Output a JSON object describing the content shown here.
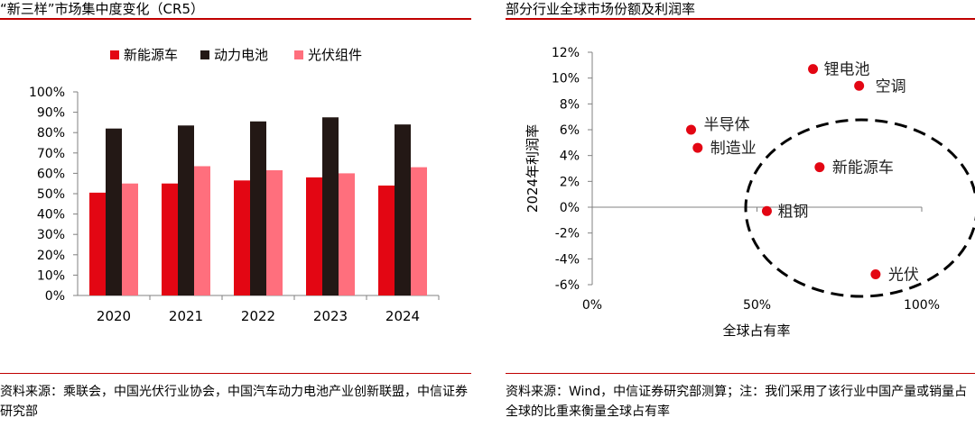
{
  "left_panel": {
    "title": "“新三样”市场集中度变化（CR5）",
    "source": "资料来源：乘联会，中国光伏行业协会，中国汽车动力电池产业创新联盟，中信证券研究部"
  },
  "right_panel": {
    "title": "部分行业全球市场份额及利润率",
    "source": "资料来源：Wind，中信证券研究部测算；注：我们采用了该行业中国产量或销量占全球的比重来衡量全球占有率"
  },
  "colors": {
    "accent": "#c00000",
    "nev": "#e30613",
    "battery": "#231815",
    "pv": "#ff6f7d",
    "point": "#e30613"
  },
  "chart_data": [
    {
      "type": "bar",
      "title": "“新三样”市场集中度变化（CR5）",
      "categories": [
        "2020",
        "2021",
        "2022",
        "2023",
        "2024"
      ],
      "series": [
        {
          "name": "新能源车",
          "values": [
            50.5,
            55,
            56.5,
            58,
            54
          ]
        },
        {
          "name": "动力电池",
          "values": [
            82,
            83.5,
            85.5,
            87.5,
            84
          ]
        },
        {
          "name": "光伏组件",
          "values": [
            55,
            63.5,
            61.5,
            60,
            63
          ]
        }
      ],
      "ylim": [
        0,
        100
      ],
      "yticks": [
        "0%",
        "10%",
        "20%",
        "30%",
        "40%",
        "50%",
        "60%",
        "70%",
        "80%",
        "90%",
        "100%"
      ],
      "legend": "top",
      "xlabel": "",
      "ylabel": ""
    },
    {
      "type": "scatter",
      "title": "部分行业全球市场份额及利润率",
      "xlabel": "全球占有率",
      "ylabel": "2024年利润率",
      "xlim": [
        0,
        100
      ],
      "ylim": [
        -6,
        12
      ],
      "xticks": [
        "0%",
        "50%",
        "100%"
      ],
      "yticks": [
        "12%",
        "10%",
        "8%",
        "6%",
        "4%",
        "2%",
        "0%",
        "-2%",
        "-4%",
        "-6%"
      ],
      "points": [
        {
          "label": "锂电池",
          "x": 67,
          "y": 10.7
        },
        {
          "label": "空调",
          "x": 81,
          "y": 9.4
        },
        {
          "label": "半导体",
          "x": 30,
          "y": 6.0
        },
        {
          "label": "制造业",
          "x": 32,
          "y": 4.6
        },
        {
          "label": "新能源车",
          "x": 69,
          "y": 3.1
        },
        {
          "label": "粗钢",
          "x": 53,
          "y": -0.3
        },
        {
          "label": "光伏",
          "x": 86,
          "y": -5.2
        }
      ],
      "annotation": "dashed ellipse highlighting high-share low-margin industries"
    }
  ]
}
